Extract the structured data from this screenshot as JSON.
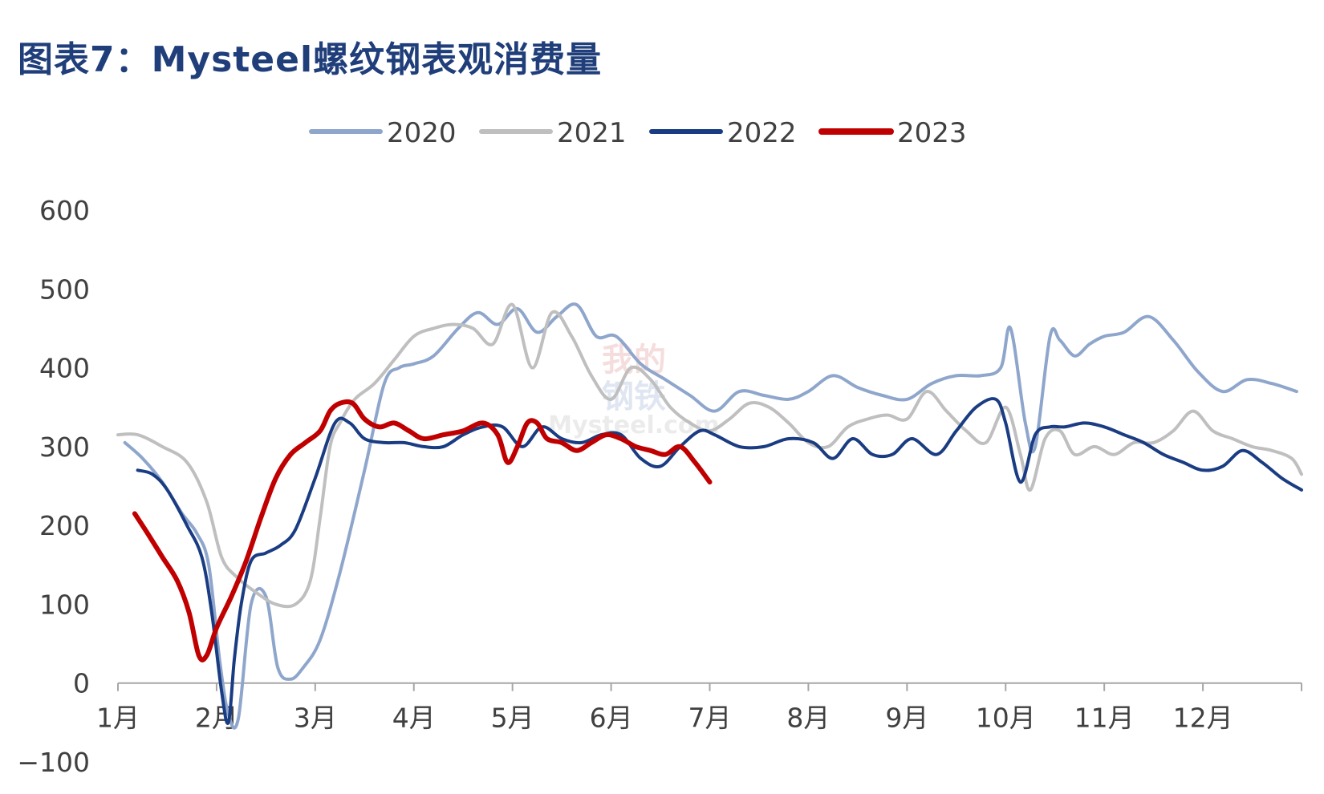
{
  "title": "图表7：Mysteel螺纹钢表观消费量",
  "watermark": {
    "top": "我的",
    "mid": "钢铁",
    "bottom": "Mysteel.com"
  },
  "chart_data": {
    "type": "line",
    "title": "图表7：Mysteel螺纹钢表观消费量",
    "xlabel": "",
    "ylabel": "",
    "ylim": [
      -100,
      600
    ],
    "yticks": [
      "600",
      "500",
      "400",
      "300",
      "200",
      "100",
      "0",
      "−100"
    ],
    "ytick_values": [
      600,
      500,
      400,
      300,
      200,
      100,
      0,
      -100
    ],
    "xticks": [
      "1月",
      "2月",
      "3月",
      "4月",
      "5月",
      "6月",
      "7月",
      "8月",
      "9月",
      "10月",
      "11月",
      "12月"
    ],
    "xlim": [
      1,
      13
    ],
    "legend_position": "top",
    "grid": false,
    "series": [
      {
        "name": "2020",
        "color": "#8fa6cc",
        "width": 4,
        "x": [
          1.07,
          1.25,
          1.45,
          1.65,
          1.8,
          1.92,
          2.03,
          2.12,
          2.22,
          2.35,
          2.5,
          2.62,
          2.75,
          2.88,
          3.05,
          3.25,
          3.5,
          3.7,
          3.85,
          4.0,
          4.2,
          4.45,
          4.65,
          4.85,
          5.05,
          5.25,
          5.45,
          5.65,
          5.85,
          6.05,
          6.3,
          6.55,
          6.8,
          7.05,
          7.3,
          7.55,
          7.8,
          8.0,
          8.25,
          8.5,
          8.75,
          9.0,
          9.25,
          9.5,
          9.75,
          9.95,
          10.05,
          10.2,
          10.3,
          10.45,
          10.55,
          10.7,
          10.85,
          11.0,
          11.2,
          11.45,
          11.7,
          11.95,
          12.2,
          12.45,
          12.7,
          12.95
        ],
        "values": [
          305,
          285,
          255,
          215,
          190,
          150,
          30,
          -40,
          -45,
          100,
          110,
          20,
          5,
          20,
          55,
          140,
          270,
          380,
          400,
          405,
          415,
          450,
          470,
          455,
          475,
          445,
          465,
          480,
          440,
          440,
          405,
          385,
          365,
          345,
          370,
          365,
          360,
          370,
          390,
          375,
          365,
          360,
          380,
          390,
          390,
          400,
          450,
          330,
          300,
          440,
          435,
          415,
          430,
          440,
          445,
          465,
          435,
          395,
          370,
          385,
          380,
          370
        ]
      },
      {
        "name": "2021",
        "color": "#bfbfbf",
        "width": 4,
        "x": [
          1.0,
          1.2,
          1.45,
          1.7,
          1.9,
          2.05,
          2.2,
          2.4,
          2.6,
          2.8,
          2.95,
          3.05,
          3.15,
          3.25,
          3.4,
          3.6,
          3.8,
          4.0,
          4.2,
          4.4,
          4.6,
          4.8,
          5.0,
          5.2,
          5.4,
          5.6,
          5.8,
          6.0,
          6.2,
          6.4,
          6.6,
          6.8,
          7.0,
          7.2,
          7.4,
          7.6,
          7.8,
          8.0,
          8.2,
          8.4,
          8.6,
          8.8,
          9.0,
          9.2,
          9.4,
          9.6,
          9.8,
          10.0,
          10.15,
          10.25,
          10.4,
          10.55,
          10.7,
          10.9,
          11.1,
          11.3,
          11.5,
          11.7,
          11.9,
          12.1,
          12.3,
          12.5,
          12.7,
          12.9,
          13.0
        ],
        "values": [
          315,
          315,
          300,
          280,
          230,
          160,
          135,
          115,
          100,
          100,
          130,
          210,
          300,
          330,
          360,
          380,
          410,
          440,
          450,
          455,
          450,
          430,
          480,
          400,
          470,
          440,
          390,
          360,
          400,
          385,
          350,
          330,
          320,
          335,
          355,
          350,
          330,
          305,
          300,
          325,
          335,
          340,
          335,
          370,
          345,
          320,
          305,
          350,
          290,
          245,
          310,
          320,
          290,
          300,
          290,
          305,
          305,
          320,
          345,
          320,
          310,
          300,
          295,
          285,
          265
        ]
      },
      {
        "name": "2022",
        "color": "#1a3c82",
        "width": 4,
        "x": [
          1.2,
          1.35,
          1.5,
          1.7,
          1.85,
          1.95,
          2.05,
          2.12,
          2.18,
          2.25,
          2.35,
          2.5,
          2.65,
          2.8,
          3.0,
          3.2,
          3.35,
          3.5,
          3.7,
          3.9,
          4.1,
          4.3,
          4.5,
          4.7,
          4.9,
          5.1,
          5.3,
          5.5,
          5.7,
          5.9,
          6.1,
          6.3,
          6.5,
          6.7,
          6.9,
          7.05,
          7.3,
          7.55,
          7.8,
          8.05,
          8.25,
          8.45,
          8.65,
          8.85,
          9.05,
          9.3,
          9.5,
          9.7,
          9.9,
          10.0,
          10.15,
          10.3,
          10.45,
          10.6,
          10.8,
          11.0,
          11.2,
          11.4,
          11.6,
          11.8,
          12.0,
          12.2,
          12.4,
          12.6,
          12.8,
          13.0
        ],
        "values": [
          270,
          265,
          245,
          200,
          160,
          90,
          -10,
          -50,
          30,
          100,
          155,
          165,
          175,
          195,
          260,
          330,
          330,
          310,
          305,
          305,
          300,
          300,
          315,
          325,
          325,
          300,
          325,
          310,
          305,
          315,
          315,
          285,
          275,
          300,
          320,
          315,
          300,
          300,
          310,
          305,
          285,
          310,
          290,
          290,
          310,
          290,
          320,
          350,
          360,
          330,
          255,
          315,
          325,
          325,
          330,
          325,
          315,
          305,
          290,
          280,
          270,
          275,
          295,
          280,
          260,
          245
        ]
      },
      {
        "name": "2023",
        "color": "#c00000",
        "width": 6,
        "x": [
          1.17,
          1.3,
          1.45,
          1.6,
          1.72,
          1.82,
          1.9,
          2.0,
          2.15,
          2.3,
          2.45,
          2.6,
          2.75,
          2.9,
          3.05,
          3.15,
          3.25,
          3.38,
          3.5,
          3.65,
          3.8,
          3.95,
          4.1,
          4.3,
          4.5,
          4.7,
          4.85,
          4.95,
          5.05,
          5.15,
          5.25,
          5.35,
          5.5,
          5.65,
          5.8,
          5.95,
          6.1,
          6.25,
          6.4,
          6.55,
          6.7,
          6.85,
          7.0
        ],
        "values": [
          215,
          190,
          160,
          130,
          90,
          35,
          35,
          70,
          110,
          155,
          210,
          260,
          290,
          305,
          320,
          345,
          355,
          355,
          335,
          325,
          330,
          320,
          310,
          315,
          320,
          330,
          315,
          280,
          300,
          330,
          330,
          310,
          305,
          295,
          305,
          315,
          310,
          300,
          295,
          290,
          300,
          280,
          255
        ]
      }
    ]
  }
}
